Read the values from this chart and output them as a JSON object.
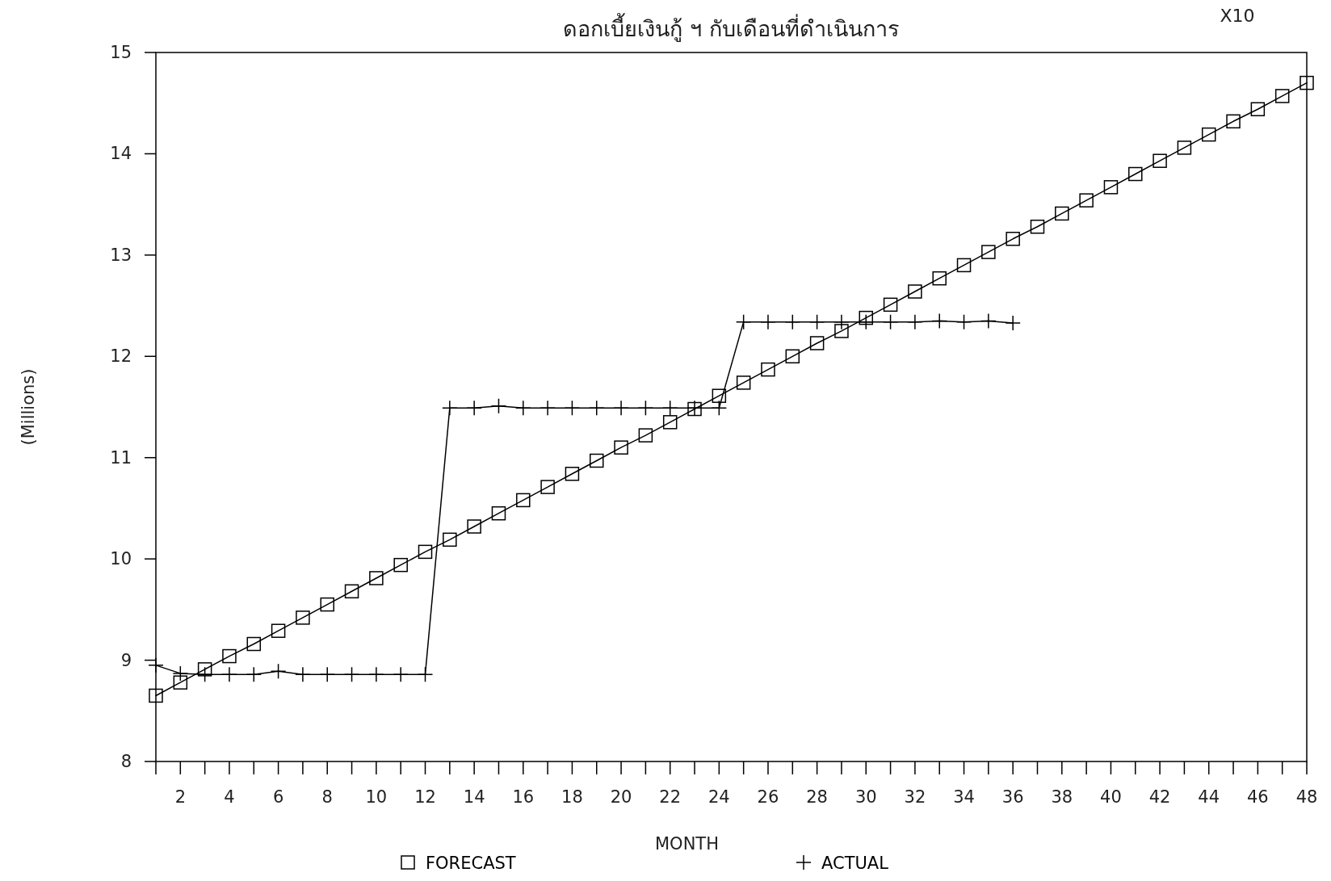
{
  "chart_data": {
    "type": "line",
    "title": "ดอกเบี้ยเงินกู้ ฯ กับเดือนที่ดำเนินการ",
    "xlabel": "MONTH",
    "ylabel": "(Millions)",
    "annotations": [
      "X10"
    ],
    "x": [
      1,
      2,
      3,
      4,
      5,
      6,
      7,
      8,
      9,
      10,
      11,
      12,
      13,
      14,
      15,
      16,
      17,
      18,
      19,
      20,
      21,
      22,
      23,
      24,
      25,
      26,
      27,
      28,
      29,
      30,
      31,
      32,
      33,
      34,
      35,
      36,
      37,
      38,
      39,
      40,
      41,
      42,
      43,
      44,
      45,
      46,
      47,
      48
    ],
    "xlim": [
      1,
      48
    ],
    "xticks": [
      {
        "value": 1,
        "label": null
      },
      2,
      {
        "value": 3,
        "label": null
      },
      4,
      {
        "value": 5,
        "label": null
      },
      6,
      {
        "value": 7,
        "label": null
      },
      8,
      {
        "value": 9,
        "label": null
      },
      10,
      {
        "value": 11,
        "label": null
      },
      12,
      {
        "value": 13,
        "label": null
      },
      14,
      {
        "value": 15,
        "label": null
      },
      16,
      {
        "value": 17,
        "label": null
      },
      18,
      {
        "value": 19,
        "label": null
      },
      20,
      {
        "value": 21,
        "label": null
      },
      22,
      {
        "value": 23,
        "label": null
      },
      24,
      {
        "value": 25,
        "label": null
      },
      26,
      {
        "value": 27,
        "label": null
      },
      28,
      {
        "value": 29,
        "label": null
      },
      30,
      {
        "value": 31,
        "label": null
      },
      32,
      {
        "value": 33,
        "label": null
      },
      34,
      {
        "value": 35,
        "label": null
      },
      36,
      {
        "value": 37,
        "label": null
      },
      38,
      {
        "value": 39,
        "label": null
      },
      40,
      {
        "value": 41,
        "label": null
      },
      42,
      {
        "value": 43,
        "label": null
      },
      44,
      {
        "value": 45,
        "label": null
      },
      46,
      {
        "value": 47,
        "label": null
      },
      48
    ],
    "ylim": [
      8,
      15
    ],
    "yticks": [
      8,
      9,
      10,
      11,
      12,
      13,
      14,
      15
    ],
    "grid": false,
    "legend": "bottom",
    "line_style": "solid",
    "series": [
      {
        "name": "FORECAST",
        "color": "#000000",
        "marker": "square",
        "values": [
          8.65,
          8.78,
          8.91,
          9.04,
          9.16,
          9.29,
          9.42,
          9.55,
          9.68,
          9.81,
          9.94,
          10.07,
          10.19,
          10.32,
          10.45,
          10.58,
          10.71,
          10.84,
          10.97,
          11.1,
          11.22,
          11.35,
          11.48,
          11.61,
          11.74,
          11.87,
          12.0,
          12.13,
          12.25,
          12.38,
          12.51,
          12.64,
          12.77,
          12.9,
          13.03,
          13.16,
          13.28,
          13.41,
          13.54,
          13.67,
          13.8,
          13.93,
          14.06,
          14.19,
          14.32,
          14.44,
          14.57,
          14.7
        ]
      },
      {
        "name": "ACTUAL",
        "color": "#000000",
        "marker": "cross",
        "values": [
          8.95,
          8.87,
          8.86,
          8.86,
          8.86,
          8.89,
          8.86,
          8.86,
          8.86,
          8.86,
          8.86,
          8.86,
          11.49,
          11.49,
          11.51,
          11.49,
          11.49,
          11.49,
          11.49,
          11.49,
          11.49,
          11.49,
          11.49,
          11.49,
          12.34,
          12.34,
          12.34,
          12.34,
          12.34,
          12.34,
          12.34,
          12.34,
          12.35,
          12.34,
          12.35,
          12.33,
          null,
          null,
          null,
          null,
          null,
          null,
          null,
          null,
          null,
          null,
          null,
          null
        ]
      }
    ]
  }
}
